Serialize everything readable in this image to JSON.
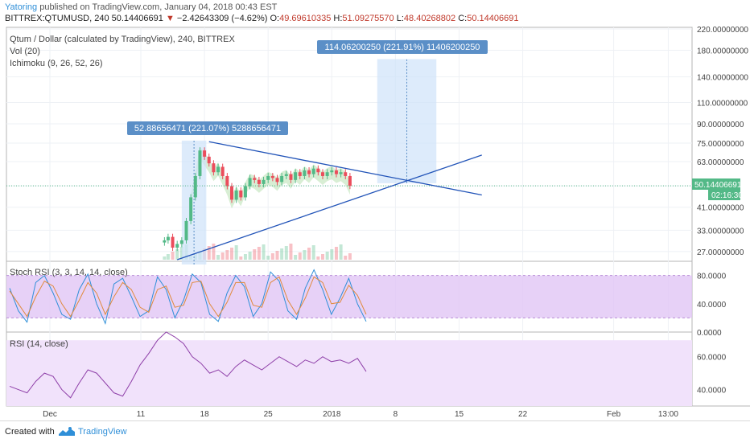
{
  "header": {
    "user": "Yatoring",
    "published": "published on TradingView.com, January 04, 2018 00:43 EST",
    "symbol": "BITTREX:QTUMUSD, 240",
    "last": "50.14406691",
    "change": "−2.42643309 (−4.62%)",
    "o_label": "O:",
    "o": "49.69610335",
    "h_label": "H:",
    "h": "51.09275570",
    "l_label": "L:",
    "l": "48.40268802",
    "c_label": "C:",
    "c": "50.14406691"
  },
  "main_pane": {
    "title": "Qtum / Dollar (calculated by TradingView), 240, BITTREX",
    "vol": "Vol (20)",
    "ichimoku": "Ichimoku (9, 26, 52, 26)",
    "measure1": "52.88656471 (221.07%) 5288656471",
    "measure2": "114.06200250 (221.91%) 11406200250",
    "price_tag": "50.14406691",
    "countdown": "02:16:30"
  },
  "stoch_pane": {
    "title": "Stoch RSI (3, 3, 14, 14, close)"
  },
  "rsi_pane": {
    "title": "RSI (14, close)"
  },
  "footer": {
    "created": "Created with",
    "brand": "TradingView"
  },
  "colors": {
    "up": "#53b987",
    "down": "#eb4d5c",
    "accent": "#2f8fd8",
    "stoch_band": "#e1c6f5",
    "rsi_band": "#f1e2fb",
    "trendline": "#2254b8",
    "measure": "#5b8fc7"
  },
  "chart_data": [
    {
      "type": "line",
      "subtype": "candlestick",
      "title": "Qtum / Dollar (calculated by TradingView), 240, BITTREX",
      "scale": "log",
      "ylim": [
        25,
        220
      ],
      "y_ticks": [
        "220.00000000",
        "180.00000000",
        "140.00000000",
        "110.00000000",
        "90.00000000",
        "75.00000000",
        "63.00000000",
        "50.14406691",
        "41.00000000",
        "33.00000000",
        "27.00000000"
      ],
      "x_ticks": [
        "Dec",
        "11",
        "18",
        "25",
        "2018",
        "8",
        "15",
        "22",
        "Feb",
        "13:00"
      ],
      "x_tick_days": [
        1,
        11,
        18,
        25,
        32,
        39,
        46,
        53,
        63,
        69
      ],
      "last_price": 50.14406691,
      "close_series": {
        "day": [
          13.6,
          14.0,
          14.5,
          15.0,
          15.5,
          16.0,
          16.5,
          17.0,
          17.5,
          18.0,
          18.5,
          19.0,
          19.5,
          20.0,
          20.5,
          21.0,
          21.5,
          22.0,
          22.5,
          23.0,
          23.5,
          24.0,
          24.5,
          25.0,
          25.5,
          26.0,
          26.5,
          27.0,
          27.5,
          28.0,
          28.5,
          29.0,
          29.5,
          30.0,
          30.5,
          31.0,
          31.5,
          32.0,
          32.5,
          33.0,
          33.5,
          34.0
        ],
        "close": [
          30,
          31,
          28,
          29,
          30,
          36,
          45,
          55,
          70,
          66,
          62,
          57,
          60,
          55,
          50,
          44,
          48,
          45,
          50,
          54,
          53,
          51,
          53,
          55,
          54,
          52,
          55,
          56,
          53,
          57,
          55,
          58,
          56,
          59,
          57,
          55,
          57,
          58,
          56,
          57,
          55,
          50.14
        ]
      },
      "measurements": [
        {
          "label": "52.88656471 (221.07%) 5288656471",
          "from_day": 15.5,
          "to_day": 18.2,
          "low": 23.9,
          "high": 76.8
        },
        {
          "label": "114.06200250 (221.91%) 11406200250",
          "from_day": 37.0,
          "to_day": 43.5,
          "low": 51.4,
          "high": 165.5
        }
      ],
      "trendlines": [
        {
          "from": [
            18.5,
            76
          ],
          "to": [
            48.5,
            46
          ]
        },
        {
          "from": [
            15.0,
            25
          ],
          "to": [
            48.5,
            67
          ]
        }
      ]
    },
    {
      "type": "line",
      "title": "Stoch RSI (3, 3, 14, 14, close)",
      "ylim": [
        0,
        100
      ],
      "y_ticks": [
        "80.0000",
        "40.0000",
        "0.0000"
      ],
      "bands": [
        20,
        80
      ],
      "series": [
        {
          "name": "K",
          "values": [
            62,
            30,
            14,
            70,
            80,
            55,
            25,
            18,
            60,
            82,
            40,
            12,
            68,
            76,
            50,
            22,
            30,
            78,
            60,
            20,
            45,
            82,
            70,
            25,
            15,
            55,
            80,
            64,
            22,
            40,
            85,
            72,
            30,
            18,
            62,
            88,
            60,
            25,
            48,
            76,
            40,
            15
          ]
        },
        {
          "name": "D",
          "values": [
            58,
            40,
            22,
            50,
            72,
            65,
            40,
            22,
            45,
            70,
            55,
            25,
            50,
            70,
            60,
            35,
            28,
            60,
            65,
            35,
            38,
            70,
            72,
            40,
            22,
            42,
            70,
            70,
            38,
            35,
            70,
            78,
            45,
            25,
            48,
            78,
            70,
            40,
            42,
            66,
            52,
            25
          ]
        }
      ]
    },
    {
      "type": "line",
      "title": "RSI (14, close)",
      "ylim": [
        30,
        75
      ],
      "y_ticks": [
        "60.0000",
        "40.0000"
      ],
      "series": [
        {
          "name": "RSI",
          "values": [
            42,
            40,
            38,
            45,
            50,
            48,
            40,
            35,
            44,
            52,
            50,
            44,
            38,
            36,
            45,
            55,
            62,
            70,
            76,
            72,
            68,
            60,
            56,
            50,
            52,
            48,
            54,
            58,
            55,
            52,
            56,
            60,
            57,
            54,
            58,
            56,
            60,
            57,
            58,
            56,
            59,
            51
          ]
        }
      ]
    }
  ]
}
